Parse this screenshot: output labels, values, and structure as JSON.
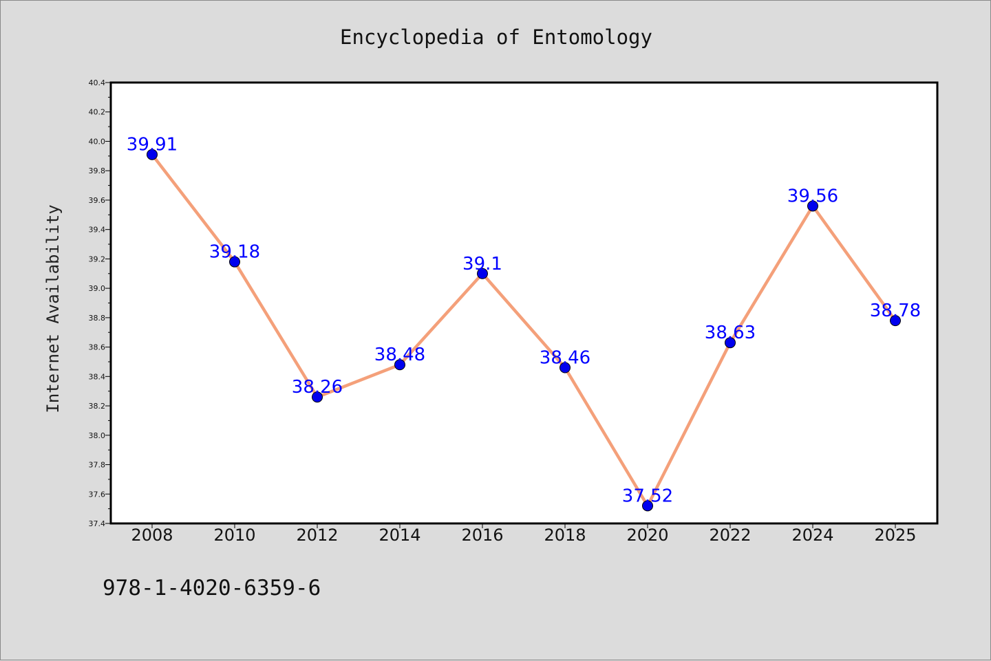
{
  "chart_data": {
    "type": "line",
    "title": "Encyclopedia of Entomology",
    "xlabel": "",
    "ylabel": "Internet Availability",
    "categories": [
      "2008",
      "2010",
      "2012",
      "2014",
      "2016",
      "2018",
      "2020",
      "2022",
      "2024",
      "2025"
    ],
    "series": [
      {
        "values": [
          39.91,
          39.18,
          38.26,
          38.48,
          39.1,
          38.46,
          37.52,
          38.63,
          39.56,
          38.78
        ],
        "data_labels": [
          "39.91",
          "39.18",
          "38.26",
          "38.48",
          "39.1",
          "38.46",
          "37.52",
          "38.63",
          "39.56",
          "38.78"
        ],
        "line_color": "#f4a07a",
        "marker_color": "#0000ee",
        "label_color": "#0000ff"
      }
    ],
    "ylim": [
      37.4,
      40.4
    ],
    "yticks": [
      "37.4",
      "37.6",
      "37.8",
      "38.0",
      "38.2",
      "38.4",
      "38.6",
      "38.8",
      "39.0",
      "39.2",
      "39.4",
      "39.6",
      "39.8",
      "40.0",
      "40.2",
      "40.4"
    ],
    "grid": false,
    "legend": "none"
  },
  "footer": {
    "isbn": "978-1-4020-6359-6"
  },
  "colors": {
    "background": "#dcdcdc",
    "plot_background": "#ffffff",
    "axes": "#000000"
  }
}
